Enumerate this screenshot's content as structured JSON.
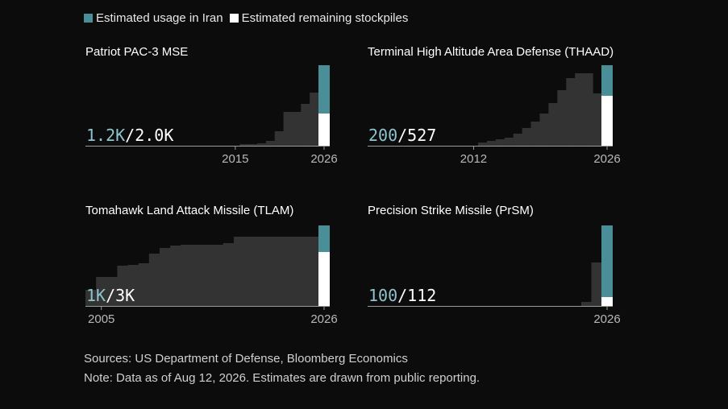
{
  "legend": {
    "usage_label": "Estimated usage in Iran",
    "remaining_label": "Estimated remaining stockpiles",
    "usage_color": "#4a8e98",
    "remaining_color": "#ffffff"
  },
  "colors": {
    "bar": "#333333",
    "axis": "#9a9a9a",
    "tick_text": "#b8b8b8",
    "used_text": "#8fc4cf",
    "total_text": "#ffffff"
  },
  "chart_data": [
    {
      "type": "area",
      "title": "Patriot PAC-3 MSE",
      "x_start": 2011,
      "values": [
        0,
        0,
        0,
        0,
        0,
        0.02,
        0.02,
        0.03,
        0.06,
        0.18,
        0.42,
        0.42,
        0.52,
        0.66
      ],
      "used_label": "1.2K",
      "total_label": "2.0K",
      "used_frac": 0.6,
      "remaining_frac": 0.4,
      "ticks": [
        2015,
        2026
      ],
      "ylim": [
        0,
        1
      ]
    },
    {
      "type": "area",
      "title": "Terminal High Altitude Area Defense (THAAD)",
      "x_start": 2012,
      "values": [
        0,
        0.04,
        0.06,
        0.08,
        0.1,
        0.15,
        0.22,
        0.3,
        0.4,
        0.53,
        0.69,
        0.84,
        0.9,
        0.9,
        0.65
      ],
      "used_label": "200",
      "total_label": "527",
      "used_frac": 0.38,
      "remaining_frac": 0.62,
      "ticks": [
        2012,
        2026
      ],
      "ylim": [
        0,
        1
      ]
    },
    {
      "type": "area",
      "title": "Tomahawk Land Attack Missile (TLAM)",
      "x_start": 2004,
      "values": [
        0.2,
        0.36,
        0.36,
        0.5,
        0.51,
        0.53,
        0.65,
        0.72,
        0.75,
        0.76,
        0.76,
        0.76,
        0.76,
        0.78,
        0.86,
        0.86,
        0.86,
        0.86,
        0.86,
        0.86,
        0.86,
        0.86
      ],
      "used_label": "1K",
      "total_label": "3K",
      "used_frac": 0.33,
      "remaining_frac": 0.67,
      "ticks": [
        2005,
        2026
      ],
      "ylim": [
        0,
        1
      ]
    },
    {
      "type": "area",
      "title": "Precision Strike Missile (PrSM)",
      "x_start": 2024,
      "values": [
        0.05,
        0.54
      ],
      "used_label": "100",
      "total_label": "112",
      "used_frac": 0.89,
      "remaining_frac": 0.11,
      "ticks": [
        2026
      ],
      "ylim": [
        0,
        1
      ]
    }
  ],
  "footer": {
    "sources": "Sources: US Department of Defense, Bloomberg Economics",
    "note": "Note: Data as of Aug 12, 2026. Estimates are drawn from public reporting."
  }
}
